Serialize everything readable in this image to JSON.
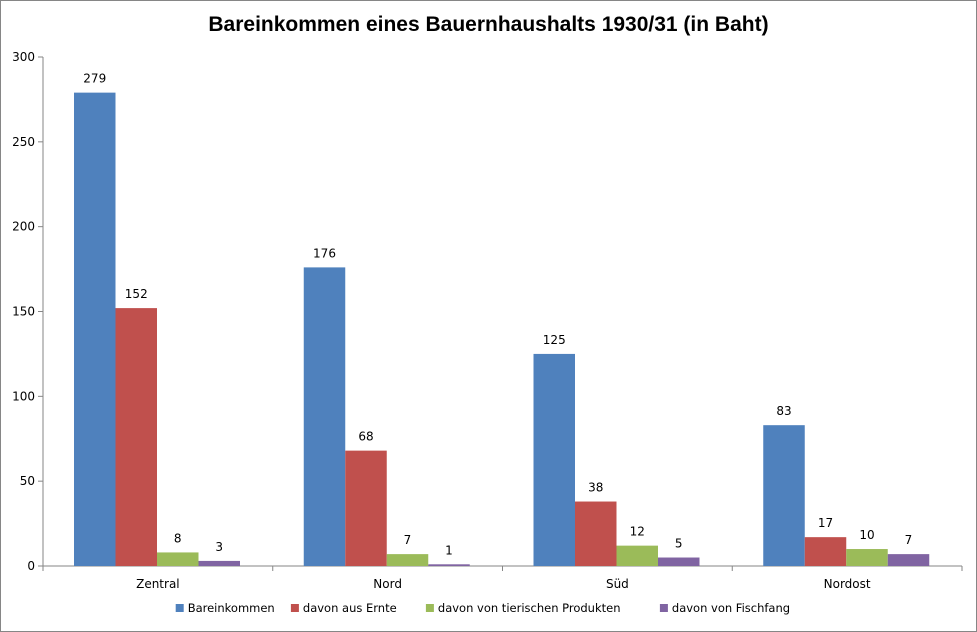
{
  "chart_data": {
    "type": "bar",
    "title": "Bareinkommen eines Bauernhaushalts 1930/31 (in Baht)",
    "categories": [
      "Zentral",
      "Nord",
      "Süd",
      "Nordost"
    ],
    "series": [
      {
        "name": "Bareinkommen",
        "color": "#4F81BD",
        "values": [
          279,
          176,
          125,
          83
        ]
      },
      {
        "name": "davon aus Ernte",
        "color": "#C0504D",
        "values": [
          152,
          68,
          38,
          17
        ]
      },
      {
        "name": "davon von tierischen Produkten",
        "color": "#9BBB59",
        "values": [
          8,
          7,
          12,
          10
        ]
      },
      {
        "name": "davon von Fischfang",
        "color": "#8064A2",
        "values": [
          3,
          1,
          5,
          7
        ]
      }
    ],
    "ylim": [
      0,
      300
    ],
    "yticks": [
      0,
      50,
      100,
      150,
      200,
      250,
      300
    ],
    "data_labels": true,
    "grid": false,
    "legend_position": "bottom"
  }
}
